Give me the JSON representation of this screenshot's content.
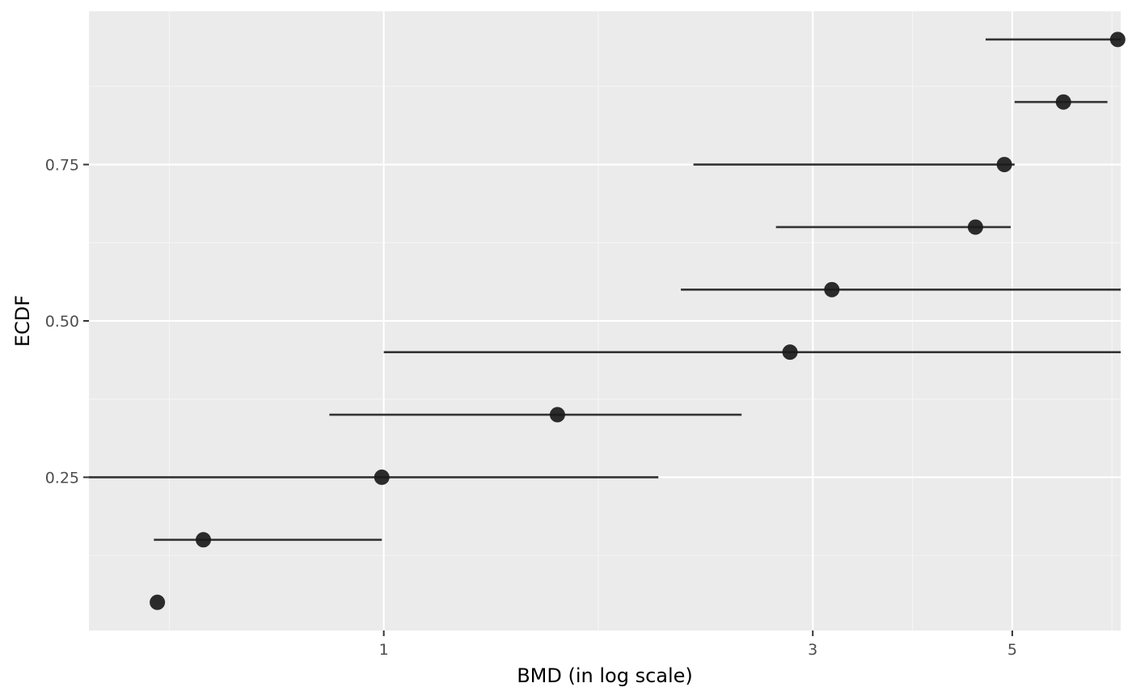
{
  "chart_data": {
    "type": "scatter",
    "xlabel": "BMD (in log scale)",
    "ylabel": "ECDF",
    "x_scale": "log10",
    "xlim": [
      0.47,
      6.6
    ],
    "ylim": [
      0.005,
      0.995
    ],
    "x_ticks": [
      1,
      3,
      5
    ],
    "x_tick_labels": [
      "1",
      "3",
      "5"
    ],
    "y_ticks": [
      0.25,
      0.5,
      0.75
    ],
    "y_tick_labels": [
      "0.25",
      "0.50",
      "0.75"
    ],
    "grid": true,
    "points": [
      {
        "ecdf": 0.05,
        "bmd": 0.56,
        "lower": null,
        "upper": null
      },
      {
        "ecdf": 0.15,
        "bmd": 0.63,
        "lower": 0.555,
        "upper": 0.995
      },
      {
        "ecdf": 0.25,
        "bmd": 0.995,
        "lower": 0.375,
        "upper": 2.02
      },
      {
        "ecdf": 0.35,
        "bmd": 1.56,
        "lower": 0.87,
        "upper": 2.5
      },
      {
        "ecdf": 0.45,
        "bmd": 2.83,
        "lower": 1.0,
        "upper": 6.6
      },
      {
        "ecdf": 0.55,
        "bmd": 3.15,
        "lower": 2.14,
        "upper": 6.6
      },
      {
        "ecdf": 0.65,
        "bmd": 4.55,
        "lower": 2.73,
        "upper": 4.98
      },
      {
        "ecdf": 0.75,
        "bmd": 4.9,
        "lower": 2.21,
        "upper": 5.03
      },
      {
        "ecdf": 0.85,
        "bmd": 5.7,
        "lower": 5.03,
        "upper": 6.38
      },
      {
        "ecdf": 0.95,
        "bmd": 6.55,
        "lower": 4.67,
        "upper": 6.6
      }
    ],
    "colors": {
      "panel": "#ebebeb",
      "grid_major": "#ffffff",
      "grid_minor": "#f5f5f5",
      "point": "#1a1a1a",
      "errorbar": "#333333",
      "tick": "#333333"
    }
  }
}
